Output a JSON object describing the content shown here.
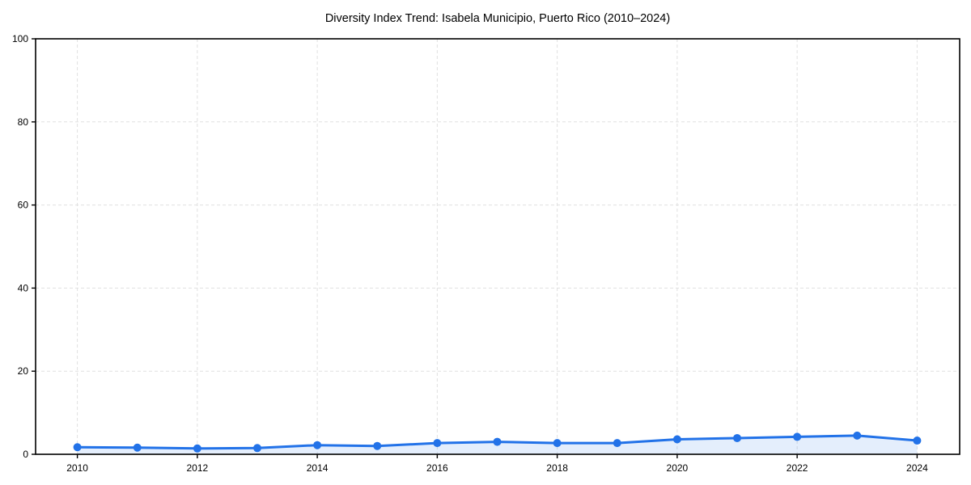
{
  "chart_data": {
    "type": "line",
    "title": "Diversity Index Trend: Isabela Municipio, Puerto Rico (2010–2024)",
    "x": [
      2010,
      2011,
      2012,
      2013,
      2014,
      2015,
      2016,
      2017,
      2018,
      2019,
      2020,
      2021,
      2022,
      2023,
      2024
    ],
    "values": [
      1.7,
      1.6,
      1.4,
      1.5,
      2.2,
      2.0,
      2.7,
      3.0,
      2.7,
      2.7,
      3.6,
      3.9,
      4.2,
      4.5,
      3.3
    ],
    "xlabel": "",
    "ylabel": "",
    "ylim": [
      0,
      100
    ],
    "y_ticks": [
      0,
      20,
      40,
      60,
      80,
      100
    ],
    "x_ticks": [
      2010,
      2012,
      2014,
      2016,
      2018,
      2020,
      2022,
      2024
    ],
    "grid": "dashed",
    "legend_position": "none",
    "marker": "circle",
    "line_color": "#2272e8",
    "fill_color": "rgba(34,114,232,0.12)",
    "grid_color": "#e0e0e0",
    "spine_color": "#000000",
    "text_color": "#000000"
  }
}
